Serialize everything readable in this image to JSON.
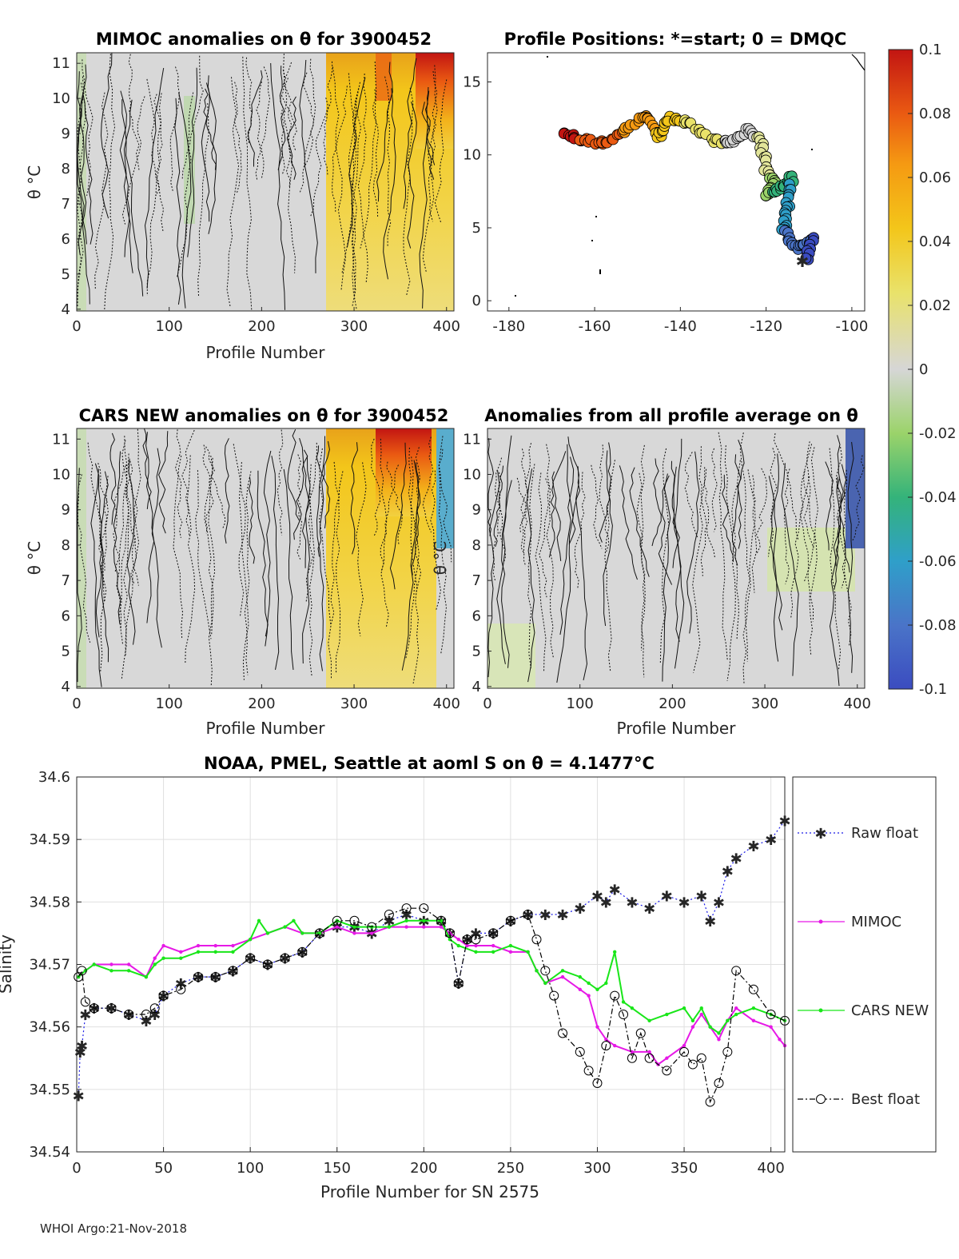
{
  "footer": "WHOI Argo:21-Nov-2018",
  "colors": {
    "raw": "#1a1ae6",
    "mimoc": "#e619e6",
    "cars": "#19e619",
    "best": "#000000"
  },
  "panels": {
    "mimoc": {
      "title": "MIMOC anomalies on θ  for 3900452",
      "xlabel": "Profile Number",
      "ylabel": "θ °C",
      "xticks": [
        "0",
        "100",
        "200",
        "300",
        "400"
      ],
      "yticks": [
        "4",
        "5",
        "6",
        "7",
        "8",
        "9",
        "10",
        "11"
      ]
    },
    "positions": {
      "title": "Profile Positions: *=start; 0 = DMQC",
      "xticks": [
        "-180",
        "-160",
        "-140",
        "-120",
        "-100"
      ],
      "yticks": [
        "0",
        "5",
        "10",
        "15"
      ]
    },
    "cars": {
      "title": "CARS NEW anomalies on θ for 3900452",
      "xlabel": "Profile Number",
      "ylabel": "θ °C",
      "xticks": [
        "0",
        "100",
        "200",
        "300",
        "400"
      ],
      "yticks": [
        "4",
        "5",
        "6",
        "7",
        "8",
        "9",
        "10",
        "11"
      ]
    },
    "allavg": {
      "title": "Anomalies from all profile average on θ",
      "xlabel": "Profile Number",
      "ylabel": "θ °C",
      "xticks": [
        "0",
        "100",
        "200",
        "300",
        "400"
      ],
      "yticks": [
        "4",
        "5",
        "6",
        "7",
        "8",
        "9",
        "10",
        "11"
      ]
    }
  },
  "colorbar": {
    "ticks": [
      "0.1",
      "0.08",
      "0.06",
      "0.04",
      "0.02",
      "0",
      "-0.02",
      "-0.04",
      "-0.06",
      "-0.08",
      "-0.1"
    ],
    "colors": [
      "#3b4cc0",
      "#4a74c8",
      "#2f9fc9",
      "#34b37a",
      "#9bd36a",
      "#e2e59a",
      "#d6d6d6",
      "#e9e26a",
      "#f3c61a",
      "#f59a12",
      "#ea5a12",
      "#c21512"
    ]
  },
  "chart_data": [
    {
      "type": "line",
      "title": "NOAA, PMEL, Seattle at aoml S on θ = 4.1477°C",
      "xlabel": "Profile Number for SN 2575",
      "ylabel": "Salinity",
      "xlim": [
        0,
        408
      ],
      "ylim": [
        34.54,
        34.6
      ],
      "xticks": [
        "0",
        "50",
        "100",
        "150",
        "200",
        "250",
        "300",
        "350",
        "400"
      ],
      "yticks": [
        "34.54",
        "34.55",
        "34.56",
        "34.57",
        "34.58",
        "34.59",
        "34.6"
      ],
      "grid": true,
      "legend_position": "right",
      "series": [
        {
          "name": "Raw float",
          "style": "dotted-star",
          "points": [
            [
              1,
              34.549
            ],
            [
              2,
              34.556
            ],
            [
              3,
              34.557
            ],
            [
              5,
              34.562
            ],
            [
              10,
              34.563
            ],
            [
              20,
              34.563
            ],
            [
              30,
              34.562
            ],
            [
              40,
              34.561
            ],
            [
              45,
              34.562
            ],
            [
              50,
              34.565
            ],
            [
              60,
              34.567
            ],
            [
              70,
              34.568
            ],
            [
              80,
              34.568
            ],
            [
              90,
              34.569
            ],
            [
              100,
              34.571
            ],
            [
              110,
              34.57
            ],
            [
              120,
              34.571
            ],
            [
              130,
              34.572
            ],
            [
              140,
              34.575
            ],
            [
              150,
              34.576
            ],
            [
              160,
              34.576
            ],
            [
              170,
              34.575
            ],
            [
              180,
              34.577
            ],
            [
              190,
              34.578
            ],
            [
              200,
              34.577
            ],
            [
              210,
              34.577
            ],
            [
              215,
              34.575
            ],
            [
              220,
              34.567
            ],
            [
              225,
              34.574
            ],
            [
              230,
              34.575
            ],
            [
              240,
              34.575
            ],
            [
              250,
              34.577
            ],
            [
              260,
              34.578
            ],
            [
              270,
              34.578
            ],
            [
              280,
              34.578
            ],
            [
              290,
              34.579
            ],
            [
              300,
              34.581
            ],
            [
              305,
              34.58
            ],
            [
              310,
              34.582
            ],
            [
              320,
              34.58
            ],
            [
              330,
              34.579
            ],
            [
              340,
              34.581
            ],
            [
              350,
              34.58
            ],
            [
              360,
              34.581
            ],
            [
              365,
              34.577
            ],
            [
              370,
              34.58
            ],
            [
              375,
              34.585
            ],
            [
              380,
              34.587
            ],
            [
              390,
              34.589
            ],
            [
              400,
              34.59
            ],
            [
              408,
              34.593
            ]
          ]
        },
        {
          "name": "MIMOC",
          "style": "solid-dot",
          "points": [
            [
              1,
              34.568
            ],
            [
              5,
              34.569
            ],
            [
              10,
              34.57
            ],
            [
              20,
              34.57
            ],
            [
              30,
              34.57
            ],
            [
              40,
              34.568
            ],
            [
              45,
              34.571
            ],
            [
              50,
              34.573
            ],
            [
              60,
              34.572
            ],
            [
              70,
              34.573
            ],
            [
              80,
              34.573
            ],
            [
              90,
              34.573
            ],
            [
              100,
              34.574
            ],
            [
              110,
              34.575
            ],
            [
              120,
              34.576
            ],
            [
              130,
              34.575
            ],
            [
              140,
              34.575
            ],
            [
              150,
              34.576
            ],
            [
              160,
              34.575
            ],
            [
              170,
              34.575
            ],
            [
              180,
              34.576
            ],
            [
              190,
              34.576
            ],
            [
              200,
              34.576
            ],
            [
              210,
              34.576
            ],
            [
              215,
              34.575
            ],
            [
              220,
              34.574
            ],
            [
              225,
              34.573
            ],
            [
              230,
              34.573
            ],
            [
              240,
              34.573
            ],
            [
              250,
              34.572
            ],
            [
              260,
              34.572
            ],
            [
              265,
              34.569
            ],
            [
              270,
              34.567
            ],
            [
              280,
              34.568
            ],
            [
              290,
              34.566
            ],
            [
              295,
              34.565
            ],
            [
              300,
              34.56
            ],
            [
              305,
              34.558
            ],
            [
              310,
              34.557
            ],
            [
              320,
              34.556
            ],
            [
              330,
              34.556
            ],
            [
              335,
              34.554
            ],
            [
              340,
              34.555
            ],
            [
              350,
              34.557
            ],
            [
              355,
              34.56
            ],
            [
              360,
              34.562
            ],
            [
              365,
              34.56
            ],
            [
              370,
              34.558
            ],
            [
              375,
              34.561
            ],
            [
              380,
              34.563
            ],
            [
              390,
              34.561
            ],
            [
              400,
              34.56
            ],
            [
              405,
              34.558
            ],
            [
              408,
              34.557
            ]
          ]
        },
        {
          "name": "CARS NEW",
          "style": "solid-dot",
          "points": [
            [
              1,
              34.568
            ],
            [
              5,
              34.569
            ],
            [
              10,
              34.57
            ],
            [
              20,
              34.569
            ],
            [
              30,
              34.569
            ],
            [
              40,
              34.568
            ],
            [
              45,
              34.57
            ],
            [
              50,
              34.571
            ],
            [
              60,
              34.571
            ],
            [
              70,
              34.572
            ],
            [
              80,
              34.572
            ],
            [
              90,
              34.572
            ],
            [
              100,
              34.574
            ],
            [
              105,
              34.577
            ],
            [
              110,
              34.575
            ],
            [
              120,
              34.576
            ],
            [
              125,
              34.577
            ],
            [
              130,
              34.575
            ],
            [
              140,
              34.575
            ],
            [
              150,
              34.577
            ],
            [
              160,
              34.576
            ],
            [
              170,
              34.576
            ],
            [
              180,
              34.576
            ],
            [
              190,
              34.577
            ],
            [
              200,
              34.577
            ],
            [
              210,
              34.577
            ],
            [
              215,
              34.574
            ],
            [
              220,
              34.573
            ],
            [
              230,
              34.572
            ],
            [
              240,
              34.572
            ],
            [
              250,
              34.573
            ],
            [
              260,
              34.572
            ],
            [
              265,
              34.569
            ],
            [
              270,
              34.567
            ],
            [
              280,
              34.569
            ],
            [
              290,
              34.568
            ],
            [
              295,
              34.567
            ],
            [
              300,
              34.566
            ],
            [
              305,
              34.567
            ],
            [
              310,
              34.572
            ],
            [
              315,
              34.564
            ],
            [
              320,
              34.563
            ],
            [
              330,
              34.561
            ],
            [
              340,
              34.562
            ],
            [
              350,
              34.563
            ],
            [
              355,
              34.561
            ],
            [
              360,
              34.563
            ],
            [
              365,
              34.56
            ],
            [
              370,
              34.559
            ],
            [
              375,
              34.561
            ],
            [
              380,
              34.562
            ],
            [
              390,
              34.563
            ],
            [
              400,
              34.562
            ],
            [
              408,
              34.561
            ]
          ]
        },
        {
          "name": "Best float",
          "style": "dashdot-circle",
          "points": [
            [
              1,
              34.568
            ],
            [
              3,
              34.569
            ],
            [
              5,
              34.564
            ],
            [
              10,
              34.563
            ],
            [
              20,
              34.563
            ],
            [
              30,
              34.562
            ],
            [
              40,
              34.562
            ],
            [
              45,
              34.563
            ],
            [
              50,
              34.565
            ],
            [
              60,
              34.566
            ],
            [
              70,
              34.568
            ],
            [
              80,
              34.568
            ],
            [
              90,
              34.569
            ],
            [
              100,
              34.571
            ],
            [
              110,
              34.57
            ],
            [
              120,
              34.571
            ],
            [
              130,
              34.572
            ],
            [
              140,
              34.575
            ],
            [
              150,
              34.577
            ],
            [
              160,
              34.577
            ],
            [
              170,
              34.576
            ],
            [
              180,
              34.578
            ],
            [
              190,
              34.579
            ],
            [
              200,
              34.579
            ],
            [
              210,
              34.577
            ],
            [
              215,
              34.575
            ],
            [
              220,
              34.567
            ],
            [
              225,
              34.574
            ],
            [
              230,
              34.574
            ],
            [
              240,
              34.575
            ],
            [
              250,
              34.577
            ],
            [
              260,
              34.578
            ],
            [
              265,
              34.574
            ],
            [
              270,
              34.569
            ],
            [
              275,
              34.565
            ],
            [
              280,
              34.559
            ],
            [
              290,
              34.556
            ],
            [
              295,
              34.553
            ],
            [
              300,
              34.551
            ],
            [
              305,
              34.557
            ],
            [
              310,
              34.565
            ],
            [
              315,
              34.562
            ],
            [
              320,
              34.555
            ],
            [
              325,
              34.559
            ],
            [
              330,
              34.555
            ],
            [
              340,
              34.553
            ],
            [
              350,
              34.556
            ],
            [
              355,
              34.554
            ],
            [
              360,
              34.555
            ],
            [
              365,
              34.548
            ],
            [
              370,
              34.551
            ],
            [
              375,
              34.556
            ],
            [
              380,
              34.569
            ],
            [
              390,
              34.566
            ],
            [
              400,
              34.562
            ],
            [
              408,
              34.561
            ]
          ]
        }
      ]
    }
  ]
}
